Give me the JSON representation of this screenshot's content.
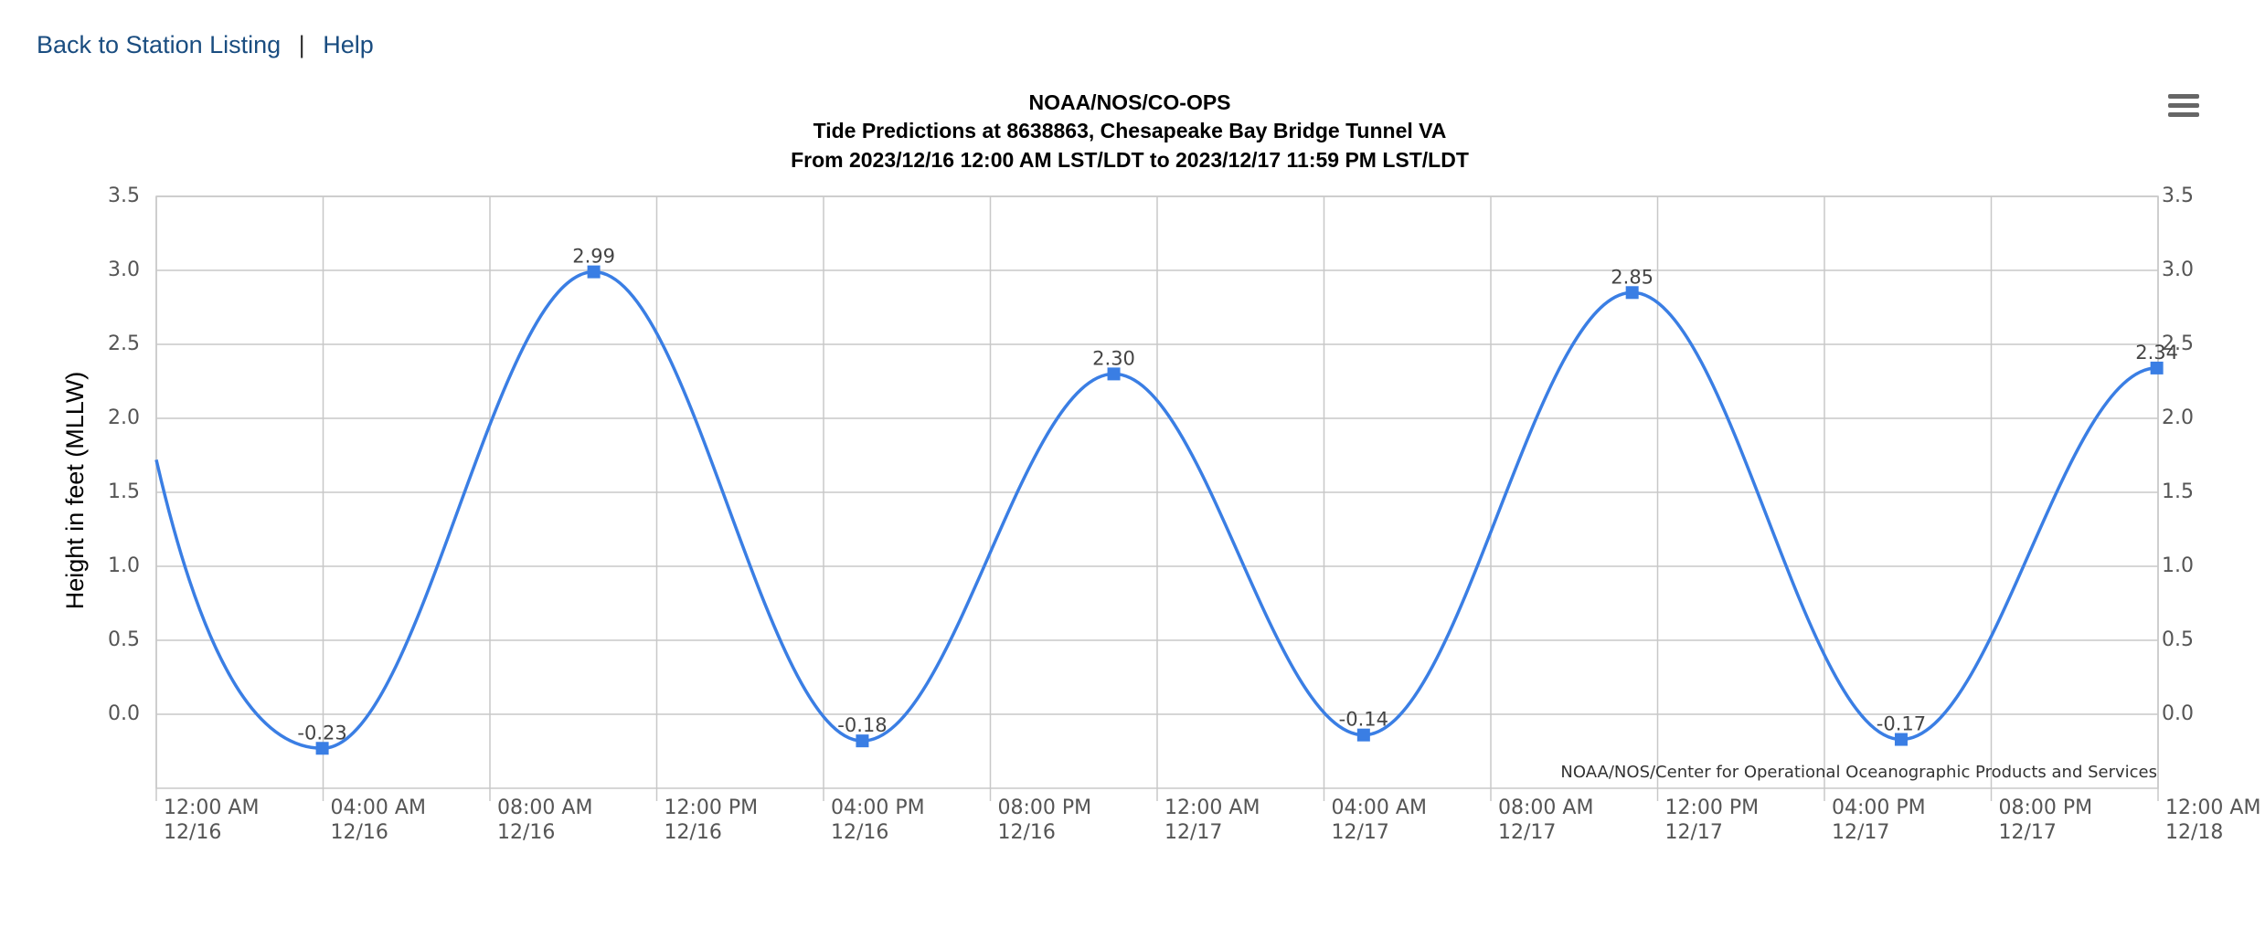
{
  "nav": [
    "Back to Station Listing",
    "|",
    "Help"
  ],
  "chart_data": {
    "type": "line",
    "title": "NOAA/NOS/CO-OPS",
    "subtitle": [
      "Tide Predictions at 8638863, Chesapeake Bay Bridge Tunnel VA",
      "From 2023/12/16 12:00 AM LST/LDT to 2023/12/17 11:59 PM LST/LDT"
    ],
    "ylabel": "Height in feet (MLLW)",
    "credit": "NOAA/NOS/Center for Operational Oceanographic Products and Services",
    "color": "#3a7ee4",
    "grid": true,
    "x": [
      0,
      3.98,
      10.49,
      16.93,
      22.96,
      28.95,
      35.39,
      41.84,
      47.97
    ],
    "values": [
      1.72,
      -0.23,
      2.99,
      -0.18,
      2.3,
      -0.14,
      2.85,
      -0.17,
      2.34
    ],
    "value_labels": [
      null,
      "-0.23",
      "2.99",
      "-0.18",
      "2.30",
      "-0.14",
      "2.85",
      "-0.17",
      "2.34"
    ],
    "xlim": [
      0,
      48
    ],
    "xticks": [
      {
        "value": 0,
        "label": "12:00 AM\n12/16"
      },
      {
        "value": 4,
        "label": "04:00 AM\n12/16"
      },
      {
        "value": 8,
        "label": "08:00 AM\n12/16"
      },
      {
        "value": 12,
        "label": "12:00 PM\n12/16"
      },
      {
        "value": 16,
        "label": "04:00 PM\n12/16"
      },
      {
        "value": 20,
        "label": "08:00 PM\n12/16"
      },
      {
        "value": 24,
        "label": "12:00 AM\n12/17"
      },
      {
        "value": 28,
        "label": "04:00 AM\n12/17"
      },
      {
        "value": 32,
        "label": "08:00 AM\n12/17"
      },
      {
        "value": 36,
        "label": "12:00 PM\n12/17"
      },
      {
        "value": 40,
        "label": "04:00 PM\n12/17"
      },
      {
        "value": 44,
        "label": "08:00 PM\n12/17"
      },
      {
        "value": 48,
        "label": "12:00 AM\n12/18"
      }
    ],
    "ylim": [
      -0.5,
      3.5
    ],
    "yticks": [
      {
        "value": 0,
        "label": "0.0"
      },
      {
        "value": 0.5,
        "label": "0.5"
      },
      {
        "value": 1,
        "label": "1.0"
      },
      {
        "value": 1.5,
        "label": "1.5"
      },
      {
        "value": 2,
        "label": "2.0"
      },
      {
        "value": 2.5,
        "label": "2.5"
      },
      {
        "value": 3,
        "label": "3.0"
      },
      {
        "value": 3.5,
        "label": "3.5"
      }
    ]
  }
}
